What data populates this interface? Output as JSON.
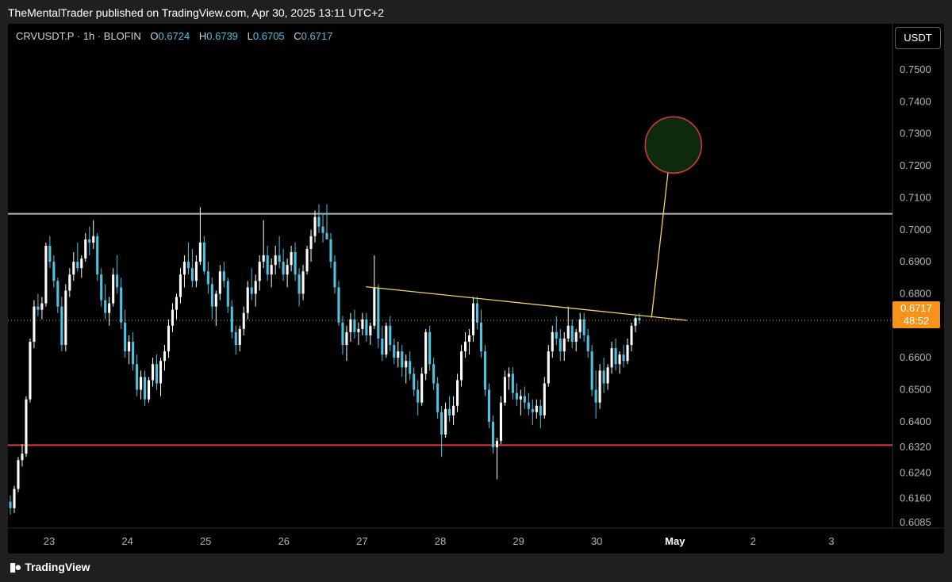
{
  "header": {
    "published_by": "TheMentalTrader published on TradingView.com, Apr 30, 2025 13:11 UTC+2"
  },
  "legend": {
    "symbol": "CRVUSDT.P · 1h · BLOFIN",
    "open_label": "O",
    "open": "0.6724",
    "high_label": "H",
    "high": "0.6739",
    "low_label": "L",
    "low": "0.6705",
    "close_label": "C",
    "close": "0.6717"
  },
  "currency_button": "USDT",
  "last_price": {
    "value": "0.6717",
    "countdown": "48:52"
  },
  "footer": {
    "brand": "TradingView"
  },
  "colors": {
    "up": "#ffffff",
    "down": "#4ec3e0",
    "resistance": "#b2b5be",
    "support": "#e0383e",
    "trendline": "#f2d46b",
    "target_circle_stroke": "#e0383e",
    "target_circle_fill": "#0d2a0d",
    "last_price": "#f7931a"
  },
  "chart_data": {
    "type": "candlestick",
    "timeframe": "1h",
    "y_axis": {
      "ticks": [
        0.75,
        0.74,
        0.73,
        0.72,
        0.71,
        0.7,
        0.69,
        0.68,
        0.66,
        0.65,
        0.64,
        0.632,
        0.624,
        0.616,
        0.6085
      ],
      "tick_labels": [
        "0.7500",
        "0.7400",
        "0.7300",
        "0.7200",
        "0.7100",
        "0.7000",
        "0.6900",
        "0.6800",
        "0.6600",
        "0.6500",
        "0.6400",
        "0.6320",
        "0.6240",
        "0.6160",
        "0.6085"
      ],
      "range": [
        0.6085,
        0.755
      ]
    },
    "x_axis": {
      "labels": [
        "23",
        "24",
        "25",
        "26",
        "27",
        "28",
        "29",
        "30",
        "May",
        "2",
        "3"
      ],
      "bold_labels": [
        "May"
      ],
      "start_day_offset": -0.5,
      "end_day_offset": 10.7
    },
    "horizontal_levels": [
      {
        "name": "resistance",
        "price": 0.705
      },
      {
        "name": "support",
        "price": 0.6327
      }
    ],
    "trendline": {
      "from": [
        4.05,
        0.6822
      ],
      "to": [
        8.15,
        0.6717
      ]
    },
    "projection": {
      "from": [
        7.7,
        0.6725
      ],
      "to": [
        7.95,
        0.7262
      ]
    },
    "target_circle": {
      "center": [
        7.98,
        0.7265
      ],
      "radius_price": 0.0088
    },
    "last_price": 0.6717,
    "candles": [
      [
        0.615,
        0.617,
        0.611,
        0.613
      ],
      [
        0.613,
        0.62,
        0.6115,
        0.619
      ],
      [
        0.619,
        0.629,
        0.618,
        0.628
      ],
      [
        0.628,
        0.633,
        0.626,
        0.63
      ],
      [
        0.63,
        0.648,
        0.629,
        0.647
      ],
      [
        0.647,
        0.666,
        0.646,
        0.665
      ],
      [
        0.665,
        0.678,
        0.663,
        0.676
      ],
      [
        0.676,
        0.68,
        0.673,
        0.675
      ],
      [
        0.675,
        0.679,
        0.672,
        0.677
      ],
      [
        0.677,
        0.696,
        0.676,
        0.695
      ],
      [
        0.695,
        0.698,
        0.688,
        0.69
      ],
      [
        0.69,
        0.692,
        0.682,
        0.684
      ],
      [
        0.684,
        0.685,
        0.674,
        0.676
      ],
      [
        0.676,
        0.679,
        0.662,
        0.664
      ],
      [
        0.664,
        0.683,
        0.662,
        0.681
      ],
      [
        0.681,
        0.688,
        0.679,
        0.686
      ],
      [
        0.686,
        0.693,
        0.684,
        0.69
      ],
      [
        0.69,
        0.696,
        0.687,
        0.688
      ],
      [
        0.688,
        0.692,
        0.685,
        0.691
      ],
      [
        0.691,
        0.699,
        0.69,
        0.697
      ],
      [
        0.697,
        0.701,
        0.692,
        0.696
      ],
      [
        0.696,
        0.703,
        0.694,
        0.698
      ],
      [
        0.698,
        0.699,
        0.684,
        0.686
      ],
      [
        0.686,
        0.688,
        0.676,
        0.678
      ],
      [
        0.678,
        0.683,
        0.672,
        0.674
      ],
      [
        0.674,
        0.679,
        0.67,
        0.677
      ],
      [
        0.677,
        0.688,
        0.676,
        0.686
      ],
      [
        0.686,
        0.692,
        0.68,
        0.682
      ],
      [
        0.682,
        0.685,
        0.669,
        0.671
      ],
      [
        0.671,
        0.675,
        0.66,
        0.662
      ],
      [
        0.662,
        0.667,
        0.658,
        0.665
      ],
      [
        0.665,
        0.668,
        0.656,
        0.658
      ],
      [
        0.658,
        0.661,
        0.648,
        0.65
      ],
      [
        0.65,
        0.656,
        0.647,
        0.654
      ],
      [
        0.654,
        0.656,
        0.645,
        0.647
      ],
      [
        0.647,
        0.654,
        0.646,
        0.653
      ],
      [
        0.653,
        0.66,
        0.651,
        0.658
      ],
      [
        0.658,
        0.661,
        0.65,
        0.652
      ],
      [
        0.652,
        0.66,
        0.648,
        0.659
      ],
      [
        0.659,
        0.664,
        0.656,
        0.662
      ],
      [
        0.662,
        0.672,
        0.66,
        0.67
      ],
      [
        0.67,
        0.677,
        0.668,
        0.675
      ],
      [
        0.675,
        0.68,
        0.672,
        0.679
      ],
      [
        0.679,
        0.688,
        0.677,
        0.686
      ],
      [
        0.686,
        0.692,
        0.682,
        0.69
      ],
      [
        0.69,
        0.696,
        0.686,
        0.688
      ],
      [
        0.688,
        0.694,
        0.682,
        0.684
      ],
      [
        0.684,
        0.692,
        0.682,
        0.69
      ],
      [
        0.69,
        0.707,
        0.689,
        0.696
      ],
      [
        0.696,
        0.698,
        0.686,
        0.687
      ],
      [
        0.687,
        0.69,
        0.68,
        0.683
      ],
      [
        0.683,
        0.685,
        0.672,
        0.676
      ],
      [
        0.676,
        0.681,
        0.67,
        0.68
      ],
      [
        0.68,
        0.689,
        0.678,
        0.687
      ],
      [
        0.687,
        0.69,
        0.682,
        0.684
      ],
      [
        0.684,
        0.685,
        0.674,
        0.676
      ],
      [
        0.676,
        0.678,
        0.666,
        0.668
      ],
      [
        0.668,
        0.67,
        0.661,
        0.664
      ],
      [
        0.664,
        0.67,
        0.662,
        0.669
      ],
      [
        0.669,
        0.676,
        0.667,
        0.674
      ],
      [
        0.674,
        0.684,
        0.672,
        0.682
      ],
      [
        0.682,
        0.688,
        0.678,
        0.68
      ],
      [
        0.68,
        0.686,
        0.676,
        0.684
      ],
      [
        0.684,
        0.692,
        0.681,
        0.69
      ],
      [
        0.69,
        0.703,
        0.688,
        0.692
      ],
      [
        0.692,
        0.695,
        0.684,
        0.686
      ],
      [
        0.686,
        0.691,
        0.682,
        0.689
      ],
      [
        0.689,
        0.695,
        0.686,
        0.692
      ],
      [
        0.692,
        0.698,
        0.688,
        0.69
      ],
      [
        0.69,
        0.694,
        0.684,
        0.686
      ],
      [
        0.686,
        0.691,
        0.682,
        0.689
      ],
      [
        0.689,
        0.695,
        0.687,
        0.693
      ],
      [
        0.693,
        0.696,
        0.684,
        0.686
      ],
      [
        0.686,
        0.688,
        0.676,
        0.68
      ],
      [
        0.68,
        0.689,
        0.678,
        0.687
      ],
      [
        0.687,
        0.695,
        0.686,
        0.694
      ],
      [
        0.694,
        0.7,
        0.69,
        0.698
      ],
      [
        0.698,
        0.706,
        0.696,
        0.704
      ],
      [
        0.704,
        0.708,
        0.699,
        0.701
      ],
      [
        0.701,
        0.705,
        0.696,
        0.699
      ],
      [
        0.699,
        0.708,
        0.697,
        0.697
      ],
      [
        0.697,
        0.699,
        0.688,
        0.69
      ],
      [
        0.69,
        0.692,
        0.68,
        0.682
      ],
      [
        0.682,
        0.684,
        0.67,
        0.671
      ],
      [
        0.671,
        0.673,
        0.661,
        0.664
      ],
      [
        0.664,
        0.67,
        0.659,
        0.668
      ],
      [
        0.668,
        0.674,
        0.665,
        0.672
      ],
      [
        0.672,
        0.675,
        0.666,
        0.668
      ],
      [
        0.668,
        0.671,
        0.664,
        0.669
      ],
      [
        0.669,
        0.674,
        0.667,
        0.672
      ],
      [
        0.672,
        0.674,
        0.665,
        0.667
      ],
      [
        0.667,
        0.671,
        0.664,
        0.67
      ],
      [
        0.67,
        0.692,
        0.669,
        0.682
      ],
      [
        0.682,
        0.683,
        0.663,
        0.666
      ],
      [
        0.666,
        0.67,
        0.659,
        0.661
      ],
      [
        0.661,
        0.671,
        0.66,
        0.67
      ],
      [
        0.67,
        0.673,
        0.662,
        0.664
      ],
      [
        0.664,
        0.666,
        0.658,
        0.66
      ],
      [
        0.66,
        0.665,
        0.657,
        0.662
      ],
      [
        0.662,
        0.664,
        0.654,
        0.657
      ],
      [
        0.657,
        0.661,
        0.652,
        0.659
      ],
      [
        0.659,
        0.662,
        0.653,
        0.655
      ],
      [
        0.655,
        0.657,
        0.648,
        0.65
      ],
      [
        0.65,
        0.653,
        0.642,
        0.646
      ],
      [
        0.646,
        0.657,
        0.645,
        0.655
      ],
      [
        0.655,
        0.669,
        0.653,
        0.668
      ],
      [
        0.668,
        0.67,
        0.656,
        0.658
      ],
      [
        0.658,
        0.66,
        0.65,
        0.652
      ],
      [
        0.652,
        0.654,
        0.641,
        0.643
      ],
      [
        0.643,
        0.645,
        0.629,
        0.636
      ],
      [
        0.636,
        0.646,
        0.635,
        0.644
      ],
      [
        0.644,
        0.648,
        0.64,
        0.642
      ],
      [
        0.642,
        0.648,
        0.639,
        0.645
      ],
      [
        0.645,
        0.655,
        0.643,
        0.653
      ],
      [
        0.653,
        0.664,
        0.651,
        0.662
      ],
      [
        0.662,
        0.668,
        0.66,
        0.665
      ],
      [
        0.665,
        0.669,
        0.661,
        0.667
      ],
      [
        0.667,
        0.679,
        0.665,
        0.677
      ],
      [
        0.677,
        0.679,
        0.669,
        0.671
      ],
      [
        0.671,
        0.675,
        0.66,
        0.662
      ],
      [
        0.662,
        0.664,
        0.648,
        0.65
      ],
      [
        0.65,
        0.652,
        0.638,
        0.64
      ],
      [
        0.64,
        0.642,
        0.63,
        0.632
      ],
      [
        0.632,
        0.635,
        0.622,
        0.634
      ],
      [
        0.634,
        0.648,
        0.633,
        0.646
      ],
      [
        0.646,
        0.656,
        0.645,
        0.654
      ],
      [
        0.654,
        0.657,
        0.65,
        0.655
      ],
      [
        0.655,
        0.657,
        0.647,
        0.649
      ],
      [
        0.649,
        0.652,
        0.645,
        0.647
      ],
      [
        0.647,
        0.65,
        0.642,
        0.648
      ],
      [
        0.648,
        0.651,
        0.644,
        0.646
      ],
      [
        0.646,
        0.649,
        0.642,
        0.644
      ],
      [
        0.644,
        0.647,
        0.639,
        0.643
      ],
      [
        0.643,
        0.647,
        0.641,
        0.645
      ],
      [
        0.645,
        0.647,
        0.638,
        0.642
      ],
      [
        0.642,
        0.654,
        0.641,
        0.652
      ],
      [
        0.652,
        0.664,
        0.651,
        0.662
      ],
      [
        0.662,
        0.67,
        0.66,
        0.668
      ],
      [
        0.668,
        0.673,
        0.664,
        0.666
      ],
      [
        0.666,
        0.669,
        0.659,
        0.662
      ],
      [
        0.662,
        0.668,
        0.659,
        0.666
      ],
      [
        0.666,
        0.676,
        0.665,
        0.67
      ],
      [
        0.67,
        0.672,
        0.663,
        0.665
      ],
      [
        0.665,
        0.669,
        0.662,
        0.668
      ],
      [
        0.668,
        0.674,
        0.666,
        0.672
      ],
      [
        0.672,
        0.674,
        0.665,
        0.667
      ],
      [
        0.667,
        0.669,
        0.66,
        0.662
      ],
      [
        0.662,
        0.664,
        0.648,
        0.65
      ],
      [
        0.65,
        0.656,
        0.641,
        0.646
      ],
      [
        0.646,
        0.658,
        0.644,
        0.656
      ],
      [
        0.656,
        0.66,
        0.649,
        0.652
      ],
      [
        0.652,
        0.658,
        0.65,
        0.657
      ],
      [
        0.657,
        0.665,
        0.655,
        0.663
      ],
      [
        0.663,
        0.666,
        0.656,
        0.658
      ],
      [
        0.658,
        0.662,
        0.655,
        0.661
      ],
      [
        0.661,
        0.664,
        0.657,
        0.659
      ],
      [
        0.659,
        0.666,
        0.658,
        0.664
      ],
      [
        0.664,
        0.671,
        0.662,
        0.67
      ],
      [
        0.67,
        0.673,
        0.668,
        0.6724
      ],
      [
        0.6724,
        0.6739,
        0.6705,
        0.6717
      ]
    ]
  }
}
